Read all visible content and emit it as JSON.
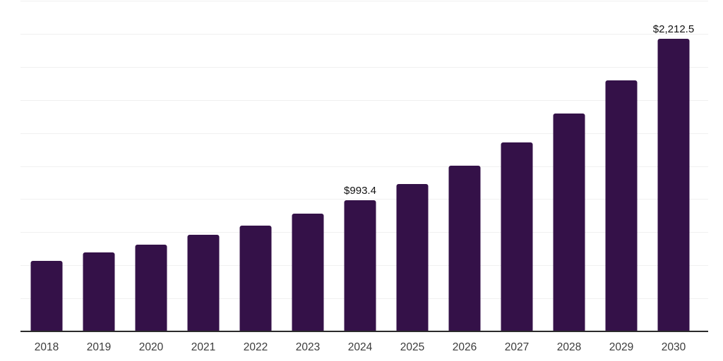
{
  "chart_data": {
    "type": "bar",
    "title": "",
    "xlabel": "",
    "ylabel": "",
    "categories": [
      "2018",
      "2019",
      "2020",
      "2021",
      "2022",
      "2023",
      "2024",
      "2025",
      "2026",
      "2027",
      "2028",
      "2029",
      "2030"
    ],
    "values": [
      535,
      595,
      655,
      730,
      800,
      890,
      993.4,
      1115,
      1255,
      1430,
      1645,
      1900,
      2212.5
    ],
    "value_labels": {
      "2024": "$993.4",
      "2030": "$2,212.5"
    },
    "ylim": [
      0,
      2500
    ],
    "grid_step": 250,
    "grid": true,
    "y_axis_labels_visible": false,
    "legend": false,
    "colors": {
      "bar": "#341148",
      "gridline": "#f0f0f0",
      "axis_line": "#2b2b2b",
      "tick_label": "#3b3b3b",
      "value_label": "#111111",
      "background": "#ffffff"
    }
  }
}
